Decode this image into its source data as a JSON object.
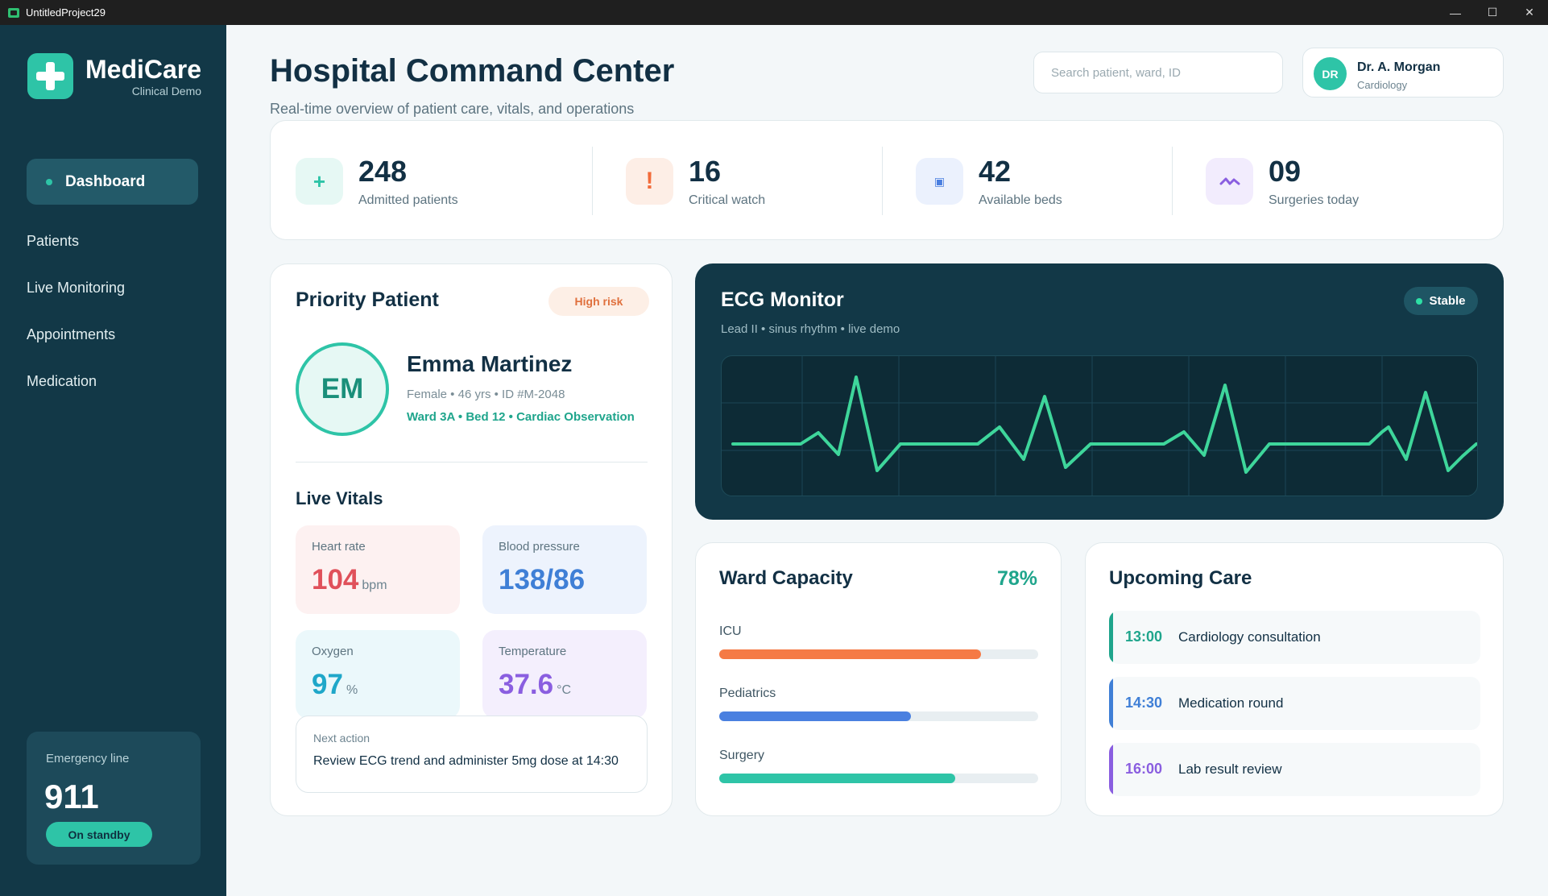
{
  "window": {
    "title": "UntitledProject29",
    "controls": [
      "minimize",
      "maximize",
      "close"
    ]
  },
  "sidebar": {
    "brand_name": "MediCare",
    "brand_sub": "Clinical Demo",
    "active_item": "Dashboard",
    "items": [
      "Patients",
      "Live Monitoring",
      "Appointments",
      "Medication"
    ],
    "emergency": {
      "label": "Emergency line",
      "number": "911",
      "status": "On standby"
    }
  },
  "header": {
    "title": "Hospital Command Center",
    "subtitle": "Real-time overview of patient care, vitals, and operations",
    "search_placeholder": "Search patient, ward, ID",
    "user": {
      "initials": "DR",
      "name": "Dr. A. Morgan",
      "role": "Cardiology"
    }
  },
  "stats": [
    {
      "icon": "plus-icon",
      "value": "248",
      "label": "Admitted patients",
      "color": "#2ec4a7"
    },
    {
      "icon": "alert-icon",
      "value": "16",
      "label": "Critical watch",
      "color": "#f26b3a"
    },
    {
      "icon": "bed-icon",
      "value": "42",
      "label": "Available beds",
      "color": "#4a7fe0"
    },
    {
      "icon": "activity-icon",
      "value": "09",
      "label": "Surgeries today",
      "color": "#8a5ee0"
    }
  ],
  "priority": {
    "title": "Priority Patient",
    "risk": "High risk",
    "initials": "EM",
    "name": "Emma Martinez",
    "meta": "Female • 46 yrs • ID #M-2048",
    "ward": "Ward 3A • Bed 12 • Cardiac Observation",
    "vitals_title": "Live Vitals",
    "vitals": {
      "heart_rate": {
        "label": "Heart rate",
        "value": "104",
        "unit": "bpm",
        "color": "#e0505a"
      },
      "blood_pressure": {
        "label": "Blood pressure",
        "value": "138/86",
        "unit": "",
        "color": "#3f7fd6"
      },
      "oxygen": {
        "label": "Oxygen",
        "value": "97",
        "unit": "%",
        "color": "#1fa7c9"
      },
      "temperature": {
        "label": "Temperature",
        "value": "37.6",
        "unit": "°C",
        "color": "#8a5ee0"
      }
    },
    "next_action": {
      "label": "Next action",
      "text": "Review ECG trend and administer 5mg dose at 14:30"
    }
  },
  "ecg": {
    "title": "ECG Monitor",
    "subtitle": "Lead II • sinus rhythm • live demo",
    "status": "Stable",
    "trace_color": "#3ed69b"
  },
  "ward": {
    "title": "Ward Capacity",
    "percent": "78%",
    "bars": [
      {
        "label": "ICU",
        "fill": 0.82,
        "color": "#f57a45"
      },
      {
        "label": "Pediatrics",
        "fill": 0.6,
        "color": "#4a80e0"
      },
      {
        "label": "Surgery",
        "fill": 0.74,
        "color": "#2ec4a7"
      }
    ]
  },
  "upcoming": {
    "title": "Upcoming Care",
    "items": [
      {
        "time": "13:00",
        "desc": "Cardiology consultation",
        "color": "#1fa58c"
      },
      {
        "time": "14:30",
        "desc": "Medication round",
        "color": "#3f7fd6"
      },
      {
        "time": "16:00",
        "desc": "Lab result review",
        "color": "#8a5ee0"
      }
    ]
  }
}
